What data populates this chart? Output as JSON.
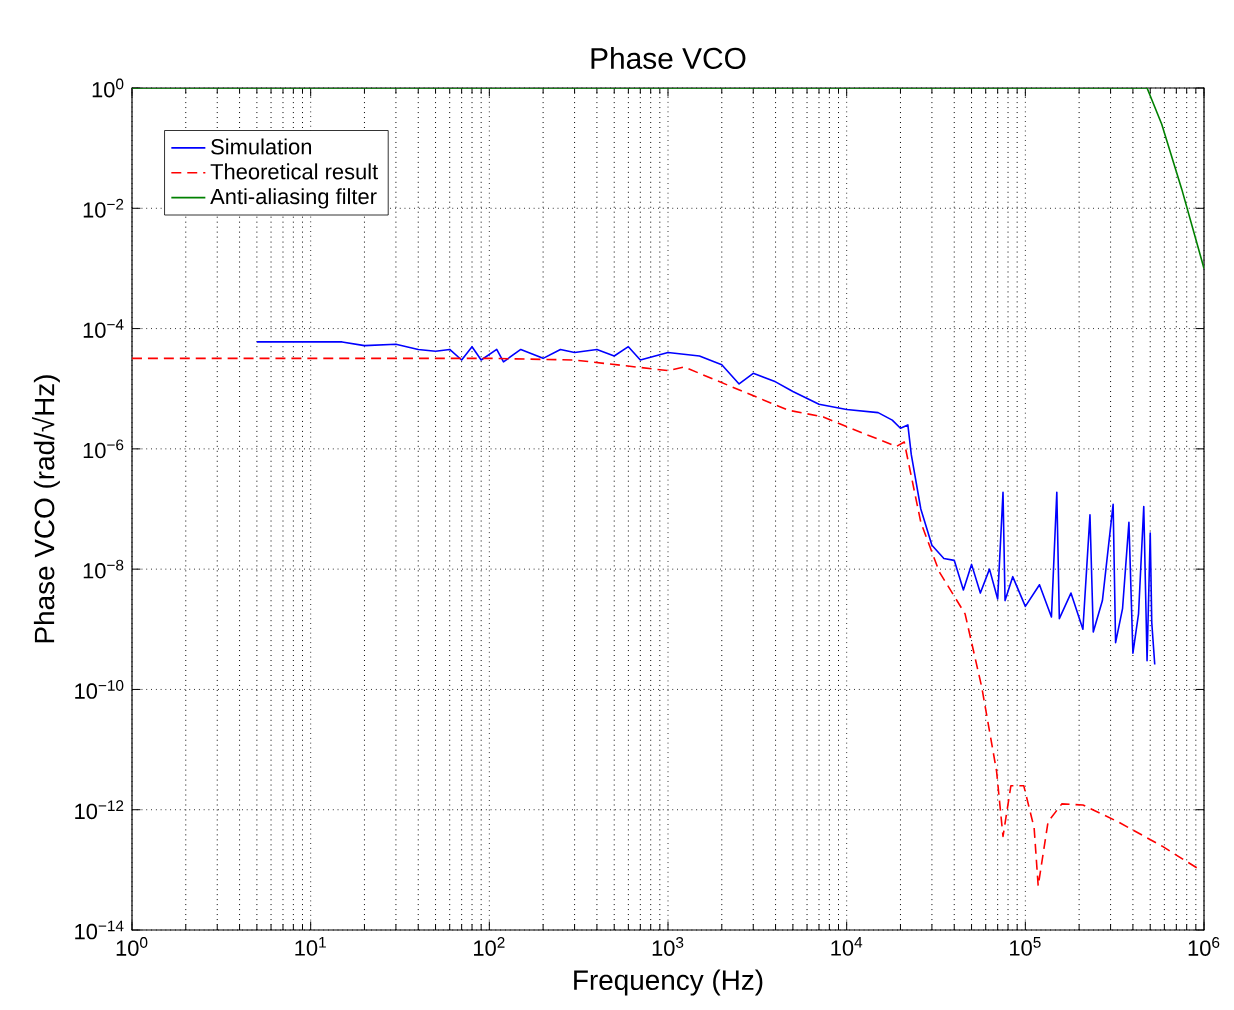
{
  "chart_data": {
    "type": "line",
    "title": "Phase VCO",
    "xlabel": "Frequency (Hz)",
    "ylabel": "Phase VCO (rad/√Hz)",
    "log": "xy",
    "grid": true,
    "legend": "top left",
    "xlim": [
      1,
      1000000
    ],
    "ylim": [
      1e-14,
      1
    ],
    "xticks": [
      {
        "value": 1,
        "label": "10$^{0}$"
      },
      {
        "value": 10,
        "label": "10$^{1}$"
      },
      {
        "value": 100,
        "label": "10$^{2}$"
      },
      {
        "value": 1000,
        "label": "10$^{3}$"
      },
      {
        "value": 10000,
        "label": "10$^{4}$"
      },
      {
        "value": 100000,
        "label": "10$^{5}$"
      },
      {
        "value": 1000000,
        "label": "10$^{6}$"
      }
    ],
    "yticks": [
      {
        "value": 1e-14,
        "label": "10$^{−14}$"
      },
      {
        "value": 1e-12,
        "label": "10$^{−12}$"
      },
      {
        "value": 1e-10,
        "label": "10$^{−10}$"
      },
      {
        "value": 1e-08,
        "label": "10$^{−8}$"
      },
      {
        "value": 1e-06,
        "label": "10$^{−6}$"
      },
      {
        "value": 0.0001,
        "label": "10$^{−4}$"
      },
      {
        "value": 0.01,
        "label": "10$^{−2}$"
      },
      {
        "value": 1,
        "label": "10$^{0}$"
      }
    ],
    "series": [
      {
        "name": "Simulation",
        "color": "#0000ff",
        "line_style": "solid",
        "x": [
          5,
          10,
          15,
          20,
          30,
          40,
          50,
          60,
          70,
          80,
          90,
          110,
          120,
          150,
          200,
          250,
          300,
          400,
          500,
          600,
          700,
          1000,
          1500,
          2000,
          2500,
          3000,
          4000,
          5000,
          7000,
          10000,
          15000,
          18000,
          20000,
          22000,
          23000,
          26000,
          30000,
          35000,
          40000,
          45000,
          50000,
          56000,
          63000,
          70000,
          75000,
          77000,
          85000,
          100000,
          120000,
          140000,
          150000,
          155000,
          180000,
          210000,
          230000,
          240000,
          270000,
          310000,
          320000,
          350000,
          380000,
          400000,
          430000,
          460000,
          480000,
          500000,
          510000,
          530000
        ],
        "values": [
          6e-05,
          6e-05,
          6e-05,
          5.2e-05,
          5.5e-05,
          4.5e-05,
          4.2e-05,
          4.5e-05,
          3e-05,
          5e-05,
          3e-05,
          4.5e-05,
          2.8e-05,
          4.5e-05,
          3.2e-05,
          4.5e-05,
          4e-05,
          4.5e-05,
          3.5e-05,
          5e-05,
          3e-05,
          4e-05,
          3.5e-05,
          2.5e-05,
          1.2e-05,
          1.8e-05,
          1.3e-05,
          9e-06,
          5.5e-06,
          4.5e-06,
          4e-06,
          3e-06,
          2.2e-06,
          2.5e-06,
          8e-07,
          1e-07,
          2.5e-08,
          1.5e-08,
          1.4e-08,
          4.5e-09,
          1.2e-08,
          4e-09,
          1e-08,
          3.2e-09,
          1.9e-07,
          3e-09,
          7.5e-09,
          2.4e-09,
          5.5e-09,
          1.6e-09,
          1.9e-07,
          1.5e-09,
          4e-09,
          1e-09,
          8e-08,
          9e-10,
          3e-09,
          1.2e-07,
          6e-10,
          2.2e-09,
          6e-08,
          4e-10,
          1.8e-09,
          1.1e-07,
          3e-10,
          4e-08,
          1.3e-09,
          2.6e-10
        ]
      },
      {
        "name": "Theoretical result",
        "color": "#ff0000",
        "line_style": "dashed",
        "x": [
          1,
          100,
          300,
          1000,
          1230,
          4700,
          7400,
          10500,
          19000,
          21000,
          26000,
          33000,
          46000,
          57000,
          69000,
          75000,
          83000,
          98000,
          112000,
          118000,
          134000,
          160000,
          210000,
          330000,
          580000,
          950000
        ],
        "values": [
          3.2e-05,
          3.2e-05,
          3e-05,
          2e-05,
          2.3e-05,
          4.4e-06,
          3.4e-06,
          2.2e-06,
          1.1e-06,
          1.3e-06,
          6e-08,
          9e-09,
          1.8e-09,
          1.1e-10,
          4.4e-12,
          3.6e-13,
          2.5e-12,
          2.5e-12,
          5e-13,
          5.4e-14,
          6.3e-13,
          1.25e-12,
          1.2e-12,
          6.3e-13,
          2.5e-13,
          1e-13
        ]
      },
      {
        "name": "Anti-aliasing filter",
        "color": "#008000",
        "line_style": "solid",
        "x": [
          1,
          480000,
          580000,
          750000,
          1000000
        ],
        "values": [
          1,
          1,
          0.25,
          0.021,
          0.001
        ]
      }
    ]
  }
}
